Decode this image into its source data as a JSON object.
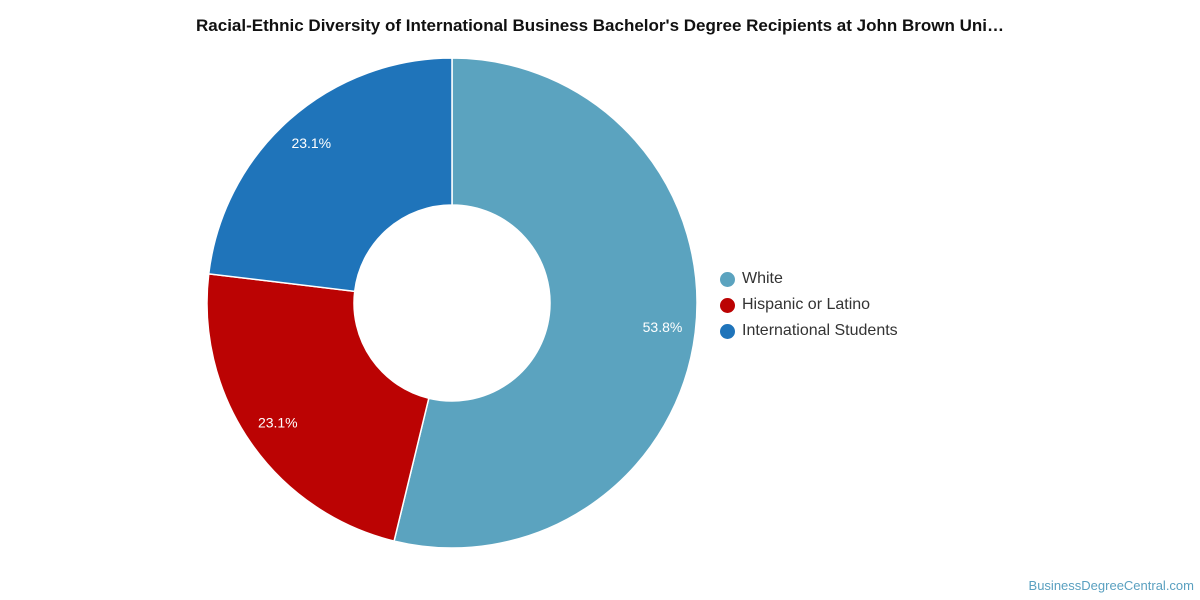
{
  "title": "Racial-Ethnic Diversity of International Business Bachelor's Degree Recipients at John Brown Uni…",
  "source": "BusinessDegreeCentral.com",
  "chart_data": {
    "type": "pie",
    "title": "Racial-Ethnic Diversity of International Business Bachelor's Degree Recipients at John Brown Uni…",
    "donut": true,
    "legend_position": "right",
    "slices": [
      {
        "label": "White",
        "value": 53.8,
        "display": "53.8%",
        "color": "#5ba3bf"
      },
      {
        "label": "Hispanic or Latino",
        "value": 23.1,
        "display": "23.1%",
        "color": "#bb0303"
      },
      {
        "label": "International Students",
        "value": 23.1,
        "display": "23.1%",
        "color": "#1f74ba"
      }
    ]
  }
}
